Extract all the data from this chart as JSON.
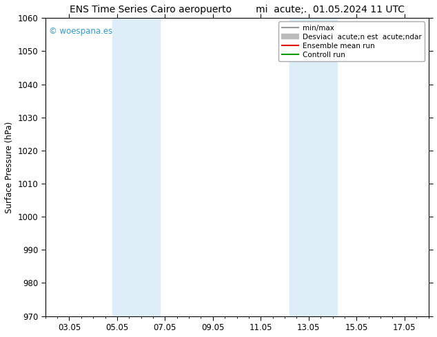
{
  "title_left": "ENS Time Series Cairo aeropuerto",
  "title_right": "mi  acute;.  01.05.2024 11 UTC",
  "ylabel": "Surface Pressure (hPa)",
  "ylim": [
    970,
    1060
  ],
  "yticks": [
    970,
    980,
    990,
    1000,
    1010,
    1020,
    1030,
    1040,
    1050,
    1060
  ],
  "xtick_labels": [
    "03.05",
    "05.05",
    "07.05",
    "09.05",
    "11.05",
    "13.05",
    "15.05",
    "17.05"
  ],
  "xtick_positions": [
    2,
    4,
    6,
    8,
    10,
    12,
    14,
    16
  ],
  "xlim": [
    1,
    17
  ],
  "shade_bands": [
    {
      "x_start": 3.8,
      "x_end": 5.8
    },
    {
      "x_start": 11.2,
      "x_end": 13.2
    }
  ],
  "shade_color": "#ddeef8",
  "background_color": "#ffffff",
  "watermark": "© woespana.es",
  "watermark_color": "#3399cc",
  "legend_entries": [
    {
      "label": "min/max",
      "color": "#999999",
      "lw": 1.5,
      "style": "-"
    },
    {
      "label": "Desviaci  acute;n est  acute;ndar",
      "color": "#bbbbbb",
      "lw": 6,
      "style": "-"
    },
    {
      "label": "Ensemble mean run",
      "color": "#dd0000",
      "lw": 1.5,
      "style": "-"
    },
    {
      "label": "Controll run",
      "color": "#009900",
      "lw": 1.5,
      "style": "-"
    }
  ],
  "border_color": "#000000",
  "font_size_title": 10,
  "font_size_axis": 8.5,
  "font_size_legend": 7.5,
  "font_size_watermark": 8.5
}
